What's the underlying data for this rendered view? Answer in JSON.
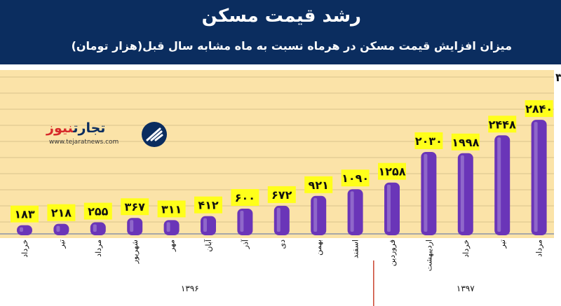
{
  "header": {
    "title": "رشد قیمت مسکن",
    "subtitle": "میزان افزایش قیمت مسکن در هرماه نسبت به ماه مشابه سال قبل(هزار تومان)"
  },
  "logo": {
    "name_dark": "تجارت",
    "name_accent": "نیوز",
    "url": "www.tejaratnews.com"
  },
  "colors": {
    "header_bg": "#0b2d5f",
    "plot_bg": "#fbe3a8",
    "grid": "#d9c38c",
    "bar": "#6a35b8",
    "label_bg": "#ffff1a"
  },
  "chart_data": {
    "type": "bar",
    "title": "رشد قیمت مسکن",
    "subtitle": "میزان افزایش قیمت مسکن در هرماه نسبت به ماه مشابه سال قبل(هزار تومان)",
    "categories": [
      "خرداد",
      "تیر",
      "مرداد",
      "شهریور",
      "مهر",
      "آبان",
      "آذر",
      "دی",
      "بهمن",
      "اسفند",
      "فروردین",
      "اردیبهشت",
      "خرداد",
      "تیر",
      "مرداد"
    ],
    "value_labels": [
      "۱۸۳",
      "۲۱۸",
      "۲۵۵",
      "۳۶۷",
      "۳۱۱",
      "۴۱۲",
      "۶۰۰",
      "۶۷۲",
      "۹۲۱",
      "۱۰۹۰",
      "۱۲۵۸",
      "۲۰۳۰",
      "۱۹۹۸",
      "۲۴۴۸",
      "۲۸۴۰"
    ],
    "values": [
      183,
      218,
      255,
      367,
      311,
      412,
      600,
      672,
      921,
      1090,
      1258,
      2030,
      1998,
      2448,
      2840
    ],
    "year_groups": [
      {
        "label": "۱۳۹۶",
        "count": 10
      },
      {
        "label": "۱۳۹۷",
        "count": 5
      }
    ],
    "partial_label": "۳",
    "ylim": [
      0,
      3600
    ],
    "grid": true,
    "legend": "none"
  }
}
